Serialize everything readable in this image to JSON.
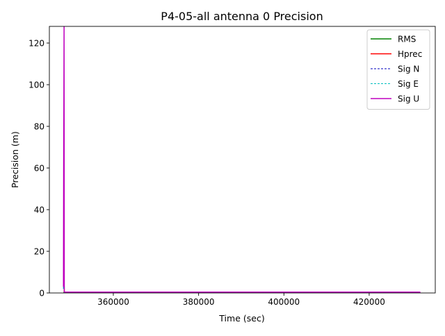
{
  "chart_data": {
    "type": "line",
    "title": "P4-05-all antenna 0 Precision",
    "xlabel": "Time (sec)",
    "ylabel": "Precision (m)",
    "xlim": [
      345000,
      435500
    ],
    "ylim": [
      0,
      128
    ],
    "x_ticks": [
      {
        "value": 360000,
        "label": "360000"
      },
      {
        "value": 380000,
        "label": "380000"
      },
      {
        "value": 400000,
        "label": "400000"
      },
      {
        "value": 420000,
        "label": "420000"
      }
    ],
    "y_ticks": [
      {
        "value": 0,
        "label": "0"
      },
      {
        "value": 20,
        "label": "20"
      },
      {
        "value": 40,
        "label": "40"
      },
      {
        "value": 60,
        "label": "60"
      },
      {
        "value": 80,
        "label": "80"
      },
      {
        "value": 100,
        "label": "100"
      },
      {
        "value": 120,
        "label": "120"
      }
    ],
    "grid": false,
    "legend_position": "upper right",
    "series": [
      {
        "name": "RMS",
        "color": "#008000",
        "dash": "solid",
        "x": [
          348300,
          348500,
          432000
        ],
        "y": [
          0.3,
          0.3,
          0.3
        ]
      },
      {
        "name": "Hprec",
        "color": "#ff0000",
        "dash": "solid",
        "x": [
          348300,
          348400,
          348500,
          432000
        ],
        "y": [
          3,
          10,
          0.3,
          0.3
        ]
      },
      {
        "name": "Sig N",
        "color": "#0000bf",
        "dash": "dashed",
        "x": [
          348300,
          348400,
          348500,
          432000
        ],
        "y": [
          2,
          8,
          0.2,
          0.2
        ]
      },
      {
        "name": "Sig E",
        "color": "#00bfbf",
        "dash": "dashed",
        "x": [
          348300,
          348400,
          348500,
          432000
        ],
        "y": [
          2,
          8,
          0.2,
          0.2
        ]
      },
      {
        "name": "Sig U",
        "color": "#bf00bf",
        "dash": "solid",
        "x": [
          348300,
          348350,
          348400,
          348450,
          348500,
          348600,
          432000
        ],
        "y": [
          3,
          62,
          90,
          128,
          0.5,
          0.4,
          0.4
        ]
      }
    ]
  }
}
